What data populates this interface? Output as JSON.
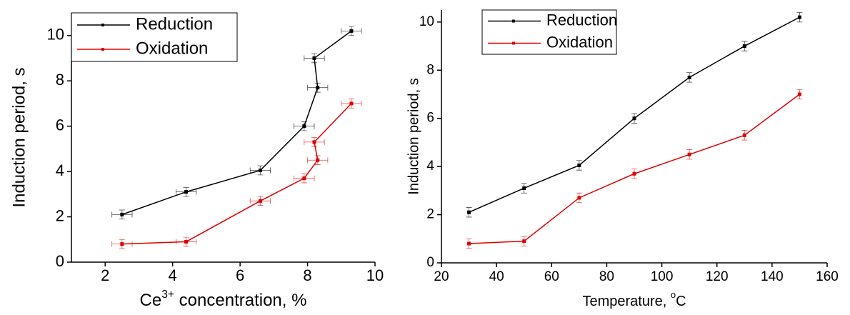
{
  "chart_data": [
    {
      "type": "line",
      "xlabel_parts": [
        "Ce",
        "3+",
        " concentration, %"
      ],
      "ylabel": "Induction period, s",
      "x": [
        2.5,
        4.4,
        6.6,
        7.9,
        8.3,
        8.2,
        9.3
      ],
      "x_errors": [
        0.3,
        0.3,
        0.3,
        0.3,
        0.3,
        0.3,
        0.3
      ],
      "series": [
        {
          "name": "Reduction",
          "color": "#000000",
          "values": [
            2.1,
            3.1,
            4.05,
            6.0,
            7.7,
            9.0,
            10.2
          ],
          "y_errors": [
            0.2,
            0.2,
            0.2,
            0.2,
            0.2,
            0.2,
            0.2
          ]
        },
        {
          "name": "Oxidation",
          "color": "#e00000",
          "values": [
            0.8,
            0.9,
            2.7,
            3.7,
            4.5,
            5.3,
            7.0
          ],
          "y_errors": [
            0.2,
            0.2,
            0.2,
            0.2,
            0.2,
            0.2,
            0.2
          ]
        }
      ],
      "xlim": [
        1,
        10
      ],
      "xticks": [
        2,
        4,
        6,
        8,
        10
      ],
      "ylim": [
        0,
        11
      ],
      "yticks": [
        0,
        2,
        4,
        6,
        8,
        10
      ],
      "legend": "upper-left"
    },
    {
      "type": "line",
      "xlabel_parts": [
        "Temperature, ",
        "o",
        "C"
      ],
      "ylabel": "Induction period, s",
      "x": [
        30,
        50,
        70,
        90,
        110,
        130,
        150
      ],
      "series": [
        {
          "name": "Reduction",
          "color": "#000000",
          "values": [
            2.1,
            3.1,
            4.05,
            6.0,
            7.7,
            9.0,
            10.2
          ],
          "y_errors": [
            0.2,
            0.2,
            0.2,
            0.2,
            0.2,
            0.2,
            0.2
          ]
        },
        {
          "name": "Oxidation",
          "color": "#e00000",
          "values": [
            0.8,
            0.9,
            2.7,
            3.7,
            4.5,
            5.3,
            7.0
          ],
          "y_errors": [
            0.2,
            0.2,
            0.2,
            0.2,
            0.2,
            0.2,
            0.2
          ]
        }
      ],
      "xlim": [
        20,
        160
      ],
      "xticks": [
        20,
        40,
        60,
        80,
        100,
        120,
        140,
        160
      ],
      "ylim": [
        0,
        10.5
      ],
      "yticks": [
        0,
        2,
        4,
        6,
        8,
        10
      ],
      "legend": "upper-left"
    }
  ]
}
